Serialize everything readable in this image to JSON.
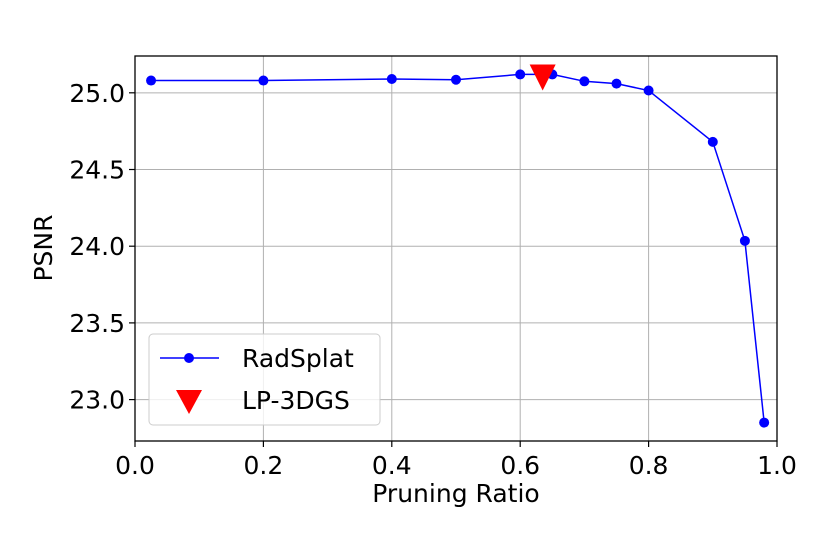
{
  "chart_data": {
    "type": "line",
    "xlabel": "Pruning Ratio",
    "ylabel": "PSNR",
    "xlim": [
      0.0,
      1.0
    ],
    "ylim": [
      22.73,
      25.24
    ],
    "xticks": [
      "0.0",
      "0.2",
      "0.4",
      "0.6",
      "0.8",
      "1.0"
    ],
    "xtick_values": [
      0.0,
      0.2,
      0.4,
      0.6,
      0.8,
      1.0
    ],
    "yticks": [
      "23.0",
      "23.5",
      "24.0",
      "24.5",
      "25.0"
    ],
    "ytick_values": [
      23.0,
      23.5,
      24.0,
      24.5,
      25.0
    ],
    "grid": true,
    "legend_position": "lower-left",
    "series": [
      {
        "name": "RadSplat",
        "color": "#0000ff",
        "marker": "circle",
        "x": [
          0.025,
          0.2,
          0.4,
          0.5,
          0.6,
          0.65,
          0.7,
          0.75,
          0.8,
          0.9,
          0.95,
          0.98
        ],
        "y": [
          25.08,
          25.08,
          25.09,
          25.085,
          25.12,
          25.12,
          25.075,
          25.06,
          25.015,
          24.68,
          24.035,
          22.85
        ]
      },
      {
        "name": "LP-3DGS",
        "color": "#ff0000",
        "marker": "triangle-down",
        "x": [
          0.635
        ],
        "y": [
          25.1
        ]
      }
    ]
  }
}
